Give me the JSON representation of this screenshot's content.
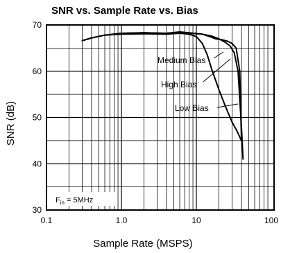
{
  "chart_data": {
    "type": "line",
    "title": "SNR vs. Sample Rate vs. Bias",
    "xlabel": "Sample Rate (MSPS)",
    "ylabel": "SNR (dB)",
    "x_scale": "log",
    "xlim": [
      0.1,
      100
    ],
    "ylim": [
      30,
      70
    ],
    "x_ticks": [
      "0.1",
      "1.0",
      "10",
      "100"
    ],
    "y_ticks": [
      "30",
      "40",
      "50",
      "60",
      "70"
    ],
    "grid": true,
    "annotation_main": "F",
    "annotation_sub": "in",
    "annotation_rest": " = 5MHz",
    "series": [
      {
        "name": "Medium Bias",
        "x": [
          0.3,
          0.4,
          0.6,
          1.0,
          2.0,
          4.0,
          6.0,
          8.0,
          12.0,
          15.0,
          18.0,
          22.0,
          26.0,
          30.0,
          34.0,
          38.0,
          40.0
        ],
        "y": [
          66.6,
          67.2,
          67.8,
          68.2,
          68.3,
          68.2,
          68.5,
          68.3,
          68.0,
          67.5,
          67.0,
          66.8,
          66.5,
          66.0,
          65.0,
          60.0,
          45.0
        ]
      },
      {
        "name": "High Bias",
        "x": [
          0.3,
          0.4,
          0.6,
          1.0,
          2.0,
          4.0,
          6.0,
          8.0,
          12.0,
          16.0,
          20.0,
          24.0,
          28.0,
          32.0,
          36.0,
          40.0,
          42.0
        ],
        "y": [
          66.6,
          67.2,
          67.8,
          68.2,
          68.3,
          68.2,
          68.4,
          68.2,
          68.0,
          67.6,
          67.0,
          66.3,
          65.5,
          64.0,
          60.0,
          48.0,
          41.0
        ]
      },
      {
        "name": "Low Bias",
        "x": [
          0.3,
          0.4,
          0.6,
          1.0,
          2.0,
          4.0,
          6.0,
          8.0,
          10.0,
          12.0,
          14.0,
          16.0,
          20.0,
          25.0,
          30.0,
          35.0,
          40.0
        ],
        "y": [
          66.6,
          67.2,
          67.8,
          68.0,
          68.1,
          68.0,
          68.2,
          68.0,
          67.5,
          66.0,
          63.5,
          60.5,
          56.0,
          52.0,
          49.0,
          47.0,
          45.0
        ]
      }
    ]
  }
}
